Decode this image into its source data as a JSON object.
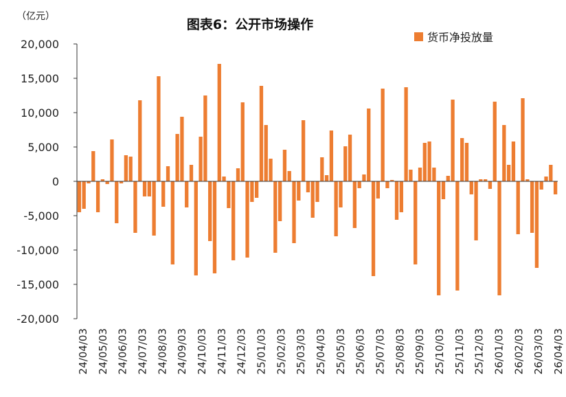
{
  "chart_data": {
    "type": "bar",
    "title": "图表6：公开市场操作",
    "unit": "（亿元）",
    "legend_position": "top-right",
    "grid": false,
    "ylim": [
      -20000,
      20000
    ],
    "y_ticks": [
      20000,
      15000,
      10000,
      5000,
      0,
      -5000,
      -10000,
      -15000,
      -20000
    ],
    "y_tick_labels": [
      "20,000",
      "15,000",
      "10,000",
      "5,000",
      "0",
      "-5,000",
      "-10,000",
      "-15,000",
      "-20,000"
    ],
    "x_tick_labels": [
      "24/04/03",
      "24/05/03",
      "24/06/03",
      "24/07/03",
      "24/08/03",
      "24/09/03",
      "24/10/03",
      "24/11/03",
      "24/12/03",
      "25/01/03",
      "25/02/03",
      "25/03/03",
      "25/04/03",
      "25/05/03",
      "25/06/03",
      "25/07/03",
      "25/08/03",
      "25/09/03",
      "25/10/03",
      "25/11/03",
      "25/12/03",
      "26/01/03",
      "26/02/03",
      "26/03/03",
      "26/04/03"
    ],
    "series": [
      {
        "name": "货币净投放量",
        "color": "#ED7D31",
        "values": [
          -4500,
          -4000,
          -300,
          4400,
          -4500,
          300,
          -400,
          6100,
          -6100,
          -300,
          3800,
          3600,
          -7500,
          11800,
          -2200,
          -2200,
          -7900,
          15300,
          -3700,
          2200,
          -12100,
          6900,
          9400,
          -3800,
          2400,
          -13700,
          6500,
          12500,
          -8700,
          -13400,
          17100,
          700,
          -3900,
          -11500,
          1900,
          11500,
          -11100,
          -3000,
          -2400,
          13900,
          8200,
          3300,
          -10400,
          -5800,
          4600,
          1500,
          -9000,
          -2800,
          8900,
          -1600,
          -5300,
          -3000,
          3500,
          900,
          7400,
          -8000,
          -3800,
          5100,
          6800,
          -6800,
          -1000,
          1000,
          10600,
          -13800,
          -2500,
          13500,
          -1000,
          200,
          -5600,
          -4500,
          13700,
          1700,
          -12100,
          2000,
          5600,
          5800,
          2000,
          -16600,
          -2600,
          800,
          11900,
          -15900,
          6300,
          5600,
          -1900,
          -8600,
          300,
          300,
          -1100,
          11600,
          -16600,
          8200,
          2400,
          5800,
          -7700,
          12100,
          300,
          -7500,
          -12600,
          -1200,
          700,
          2400,
          -1900
        ]
      }
    ]
  }
}
